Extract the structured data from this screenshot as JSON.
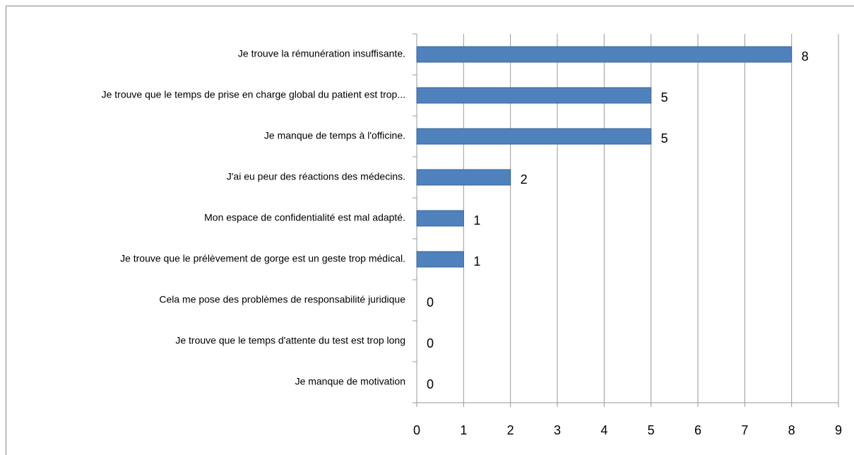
{
  "chart_data": {
    "type": "bar",
    "orientation": "horizontal",
    "categories": [
      "Je trouve la rémunération insuffisante.",
      "Je trouve que le temps de prise en charge global du patient est trop...",
      "Je manque de temps à l'officine.",
      "J'ai eu peur des réactions des médecins.",
      "Mon espace de confidentialité est mal adapté.",
      "Je trouve que le prélèvement de gorge est un geste trop médical.",
      "Cela me pose des problèmes de responsabilité juridique",
      "Je trouve que le temps d'attente du test est trop long",
      "Je manque de motivation"
    ],
    "values": [
      8,
      5,
      5,
      2,
      1,
      1,
      0,
      0,
      0
    ],
    "color": "#4f81bd",
    "xlim": [
      0,
      9
    ],
    "xticks": [
      0,
      1,
      2,
      3,
      4,
      5,
      6,
      7,
      8,
      9
    ],
    "grid": true
  }
}
